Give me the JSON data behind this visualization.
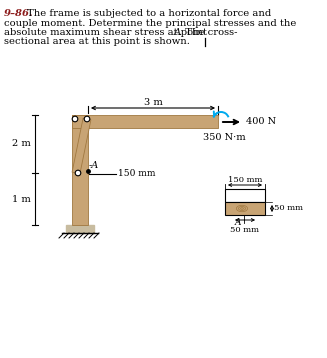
{
  "title_number": "9–86.",
  "wood_color": "#c8a474",
  "wood_edge": "#a07840",
  "ground_color": "#c8bca0",
  "text_color": "#8B1A1A",
  "moment_arrow_color": "#00aaee",
  "force_label": "400 N",
  "moment_label": "350 N·m",
  "dim_3m": "3 m",
  "dim_2m": "2 m",
  "dim_1m": "1 m",
  "dim_150mm_frame": "150 mm",
  "dim_150mm_cs": "150 mm",
  "dim_50mm_h": "50 mm",
  "dim_50mm_w": "50 mm",
  "point_A_frame": "A",
  "point_A_cs": "A",
  "background_color": "#ffffff"
}
